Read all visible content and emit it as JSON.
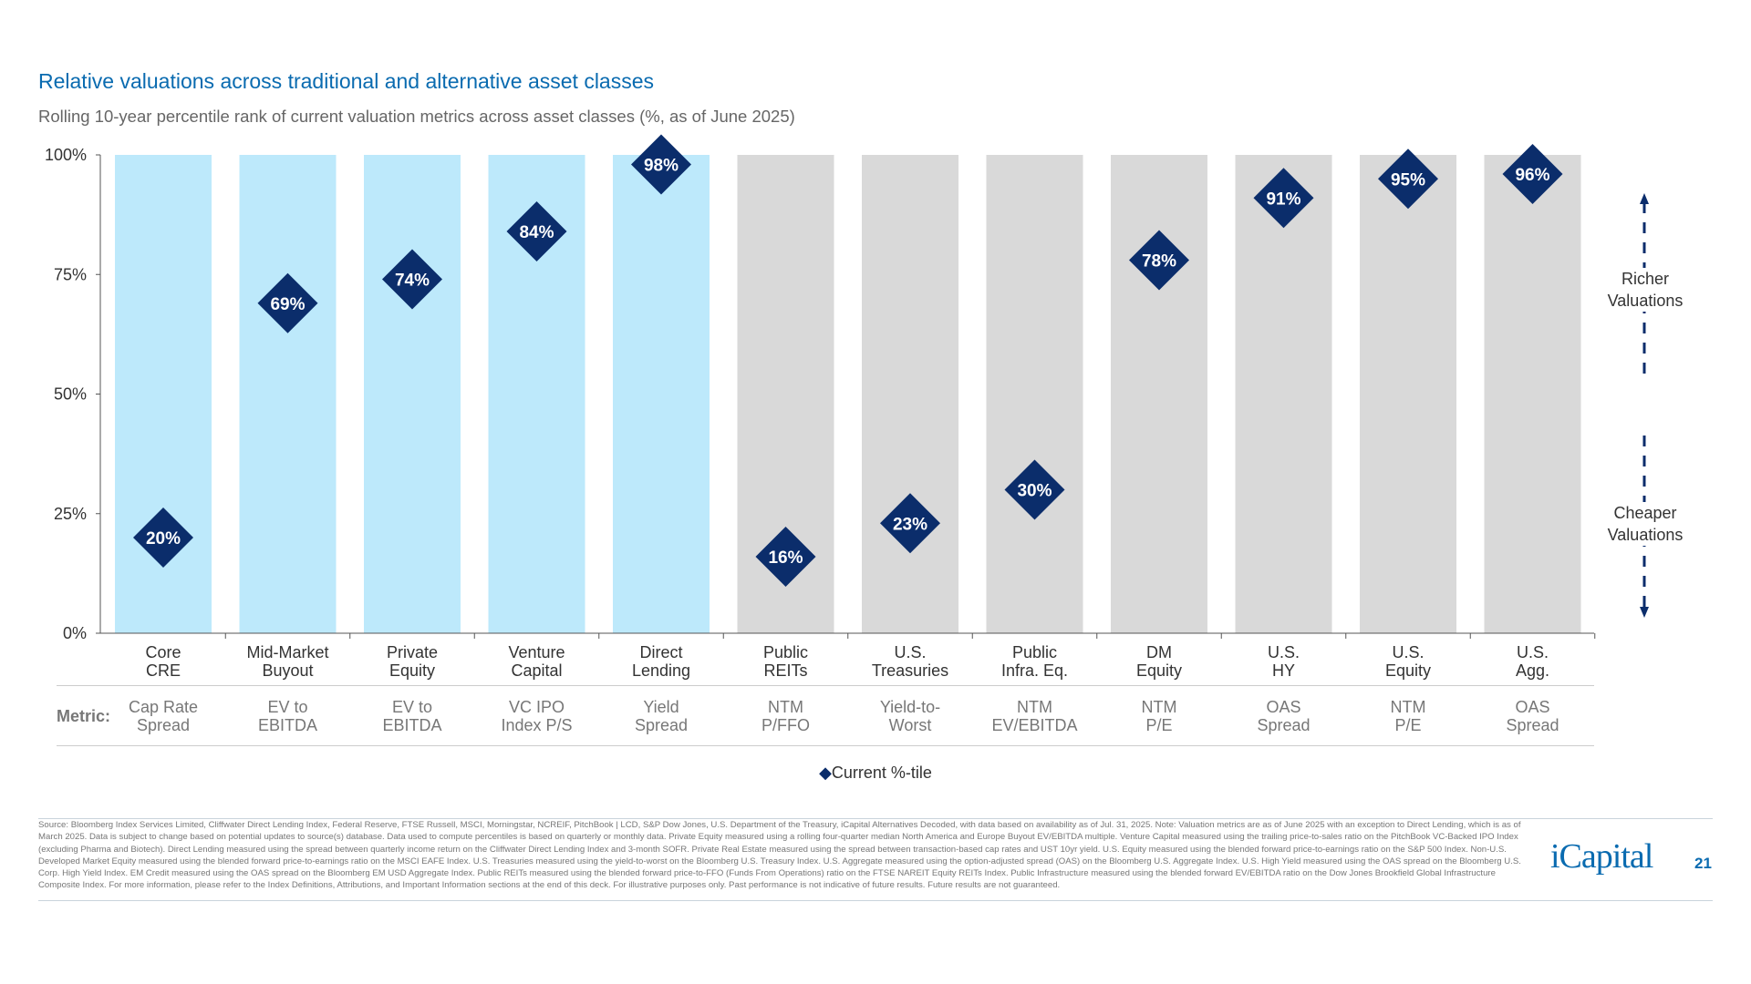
{
  "title": "Relative valuations across traditional and alternative asset classes",
  "subtitle": "Rolling 10-year percentile rank of current valuation metrics across asset classes (%, as of June 2025)",
  "metric_label": "Metric:",
  "legend": "Current %-tile",
  "side_labels": {
    "top": "Richer Valuations",
    "bottom": "Cheaper Valuations"
  },
  "footnote": "Source: Bloomberg Index Services Limited, Cliffwater Direct Lending Index, Federal Reserve, FTSE Russell, MSCI, Morningstar, NCREIF, PitchBook | LCD, S&P Dow Jones, U.S. Department of the Treasury, iCapital Alternatives Decoded, with data based on availability as of Jul. 31, 2025. Note: Valuation metrics are as of June 2025 with an exception to Direct Lending, which is as of March 2025. Data is subject to change based on potential updates to source(s) database. Data used to compute percentiles is based on quarterly or monthly data. Private Equity measured using a rolling four-quarter median North America and Europe Buyout EV/EBITDA multiple. Venture Capital measured using the trailing price-to-sales ratio on the PitchBook VC-Backed IPO Index (excluding Pharma and Biotech). Direct Lending measured using the spread between quarterly income return on the Cliffwater Direct Lending Index and 3-month SOFR. Private Real Estate measured using the spread between transaction-based cap rates and UST 10yr yield. U.S. Equity measured using the blended forward price-to-earnings ratio on the S&P 500 Index. Non-U.S. Developed Market Equity measured using the blended forward price-to-earnings ratio on the MSCI EAFE Index. U.S. Treasuries measured using the yield-to-worst on the Bloomberg U.S. Treasury Index. U.S. Aggregate measured using the option-adjusted spread (OAS) on the Bloomberg U.S. Aggregate Index. U.S. High Yield measured using the OAS spread on the Bloomberg U.S. Corp. High Yield Index. EM Credit measured using the OAS spread on the Bloomberg EM USD Aggregate Index. Public REITs measured using the blended forward price-to-FFO (Funds From Operations) ratio on the FTSE NAREIT Equity REITs Index. Public Infrastructure measured using the blended forward EV/EBITDA ratio on the Dow Jones Brookfield Global Infrastructure Composite Index. For more information, please refer to the Index Definitions, Attributions, and Important Information sections at the end of this deck. For illustrative purposes only. Past performance is not indicative of future results. Future results are not guaranteed.",
  "logo": "iCapital",
  "page_number": "21",
  "colors": {
    "alternative_bar": "#bde9fb",
    "traditional_bar": "#d9d9d9",
    "marker": "#0b2d6b",
    "title": "#0a6bb0"
  },
  "chart_data": {
    "type": "bar",
    "ylim": [
      0,
      100
    ],
    "yticks": [
      "0%",
      "25%",
      "50%",
      "75%",
      "100%"
    ],
    "categories": [
      "Core CRE",
      "Mid-Market Buyout",
      "Private Equity",
      "Venture Capital",
      "Direct Lending",
      "Public REITs",
      "U.S. Treasuries",
      "Public Infra. Eq.",
      "DM Equity",
      "U.S. HY",
      "U.S. Equity",
      "U.S. Agg."
    ],
    "category_lines": [
      [
        "Core",
        "CRE"
      ],
      [
        "Mid-Market",
        "Buyout"
      ],
      [
        "Private",
        "Equity"
      ],
      [
        "Venture",
        "Capital"
      ],
      [
        "Direct",
        "Lending"
      ],
      [
        "Public",
        "REITs"
      ],
      [
        "U.S.",
        "Treasuries"
      ],
      [
        "Public",
        "Infra. Eq."
      ],
      [
        "DM",
        "Equity"
      ],
      [
        "U.S.",
        "HY"
      ],
      [
        "U.S.",
        "Equity"
      ],
      [
        "U.S.",
        "Agg."
      ]
    ],
    "metrics": [
      [
        "Cap Rate",
        "Spread"
      ],
      [
        "EV to",
        "EBITDA"
      ],
      [
        "EV to",
        "EBITDA"
      ],
      [
        "VC IPO",
        "Index P/S"
      ],
      [
        "Yield",
        "Spread"
      ],
      [
        "NTM",
        "P/FFO"
      ],
      [
        "Yield-to-",
        "Worst"
      ],
      [
        "NTM",
        "EV/EBITDA"
      ],
      [
        "NTM",
        "P/E"
      ],
      [
        "OAS",
        "Spread"
      ],
      [
        "NTM",
        "P/E"
      ],
      [
        "OAS",
        "Spread"
      ]
    ],
    "group": [
      "alternative",
      "alternative",
      "alternative",
      "alternative",
      "alternative",
      "traditional",
      "traditional",
      "traditional",
      "traditional",
      "traditional",
      "traditional",
      "traditional"
    ],
    "bar_values": [
      100,
      100,
      100,
      100,
      100,
      100,
      100,
      100,
      100,
      100,
      100,
      100
    ],
    "series": [
      {
        "name": "Current %-tile",
        "values": [
          20,
          69,
          74,
          84,
          98,
          16,
          23,
          30,
          78,
          91,
          95,
          96
        ],
        "labels": [
          "20%",
          "69%",
          "74%",
          "84%",
          "98%",
          "16%",
          "23%",
          "30%",
          "78%",
          "91%",
          "95%",
          "96%"
        ]
      }
    ]
  }
}
